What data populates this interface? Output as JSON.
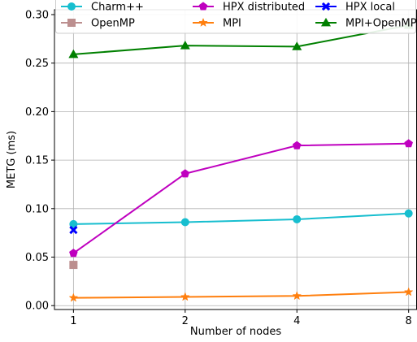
{
  "chart_data": {
    "type": "line",
    "title": "",
    "xlabel": "Number of nodes",
    "ylabel": "METG (ms)",
    "x": [
      1,
      2,
      4,
      8
    ],
    "xscale": "log2",
    "ylim": [
      -0.004,
      0.305
    ],
    "yticks": [
      "0.00",
      "0.05",
      "0.10",
      "0.15",
      "0.20",
      "0.25",
      "0.30"
    ],
    "yticks_values": [
      0.0,
      0.05,
      0.1,
      0.15,
      0.2,
      0.25,
      0.3
    ],
    "xticks": [
      "1",
      "2",
      "4",
      "8"
    ],
    "grid": true,
    "legend_position": "top, 3 columns",
    "series": [
      {
        "name": "Charm++",
        "color": "#17becf",
        "marker": "circle",
        "x": [
          1,
          2,
          4,
          8
        ],
        "values": [
          0.084,
          0.086,
          0.089,
          0.095
        ]
      },
      {
        "name": "HPX distributed",
        "color": "#bf00bf",
        "marker": "pentagon",
        "x": [
          1,
          2,
          4,
          8
        ],
        "values": [
          0.054,
          0.136,
          0.165,
          0.167
        ]
      },
      {
        "name": "HPX local",
        "color": "#0000ff",
        "marker": "x",
        "x": [
          1
        ],
        "values": [
          0.078
        ]
      },
      {
        "name": "OpenMP",
        "color": "#bc8f8f",
        "marker": "square",
        "x": [
          1
        ],
        "values": [
          0.042
        ]
      },
      {
        "name": "MPI",
        "color": "#ff7f0e",
        "marker": "star",
        "x": [
          1,
          2,
          4,
          8
        ],
        "values": [
          0.008,
          0.009,
          0.01,
          0.014
        ]
      },
      {
        "name": "MPI+OpenMP",
        "color": "#008000",
        "marker": "triangle",
        "x": [
          1,
          2,
          4,
          8
        ],
        "values": [
          0.259,
          0.268,
          0.267,
          0.289
        ]
      }
    ]
  }
}
